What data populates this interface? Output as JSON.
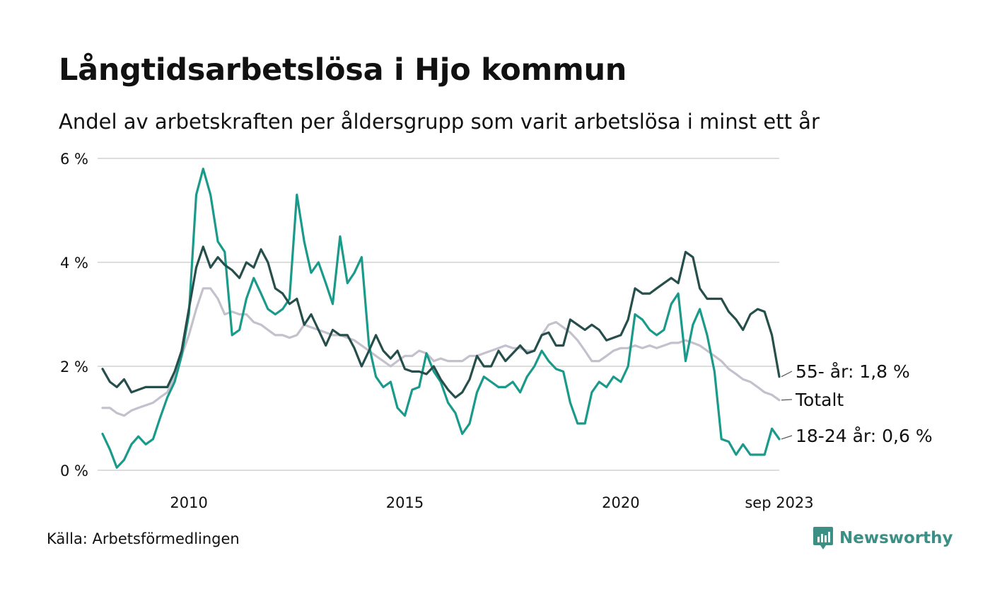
{
  "header": {
    "title": "Långtidsarbetslösa i Hjo kommun",
    "subtitle": "Andel av arbetskraften per åldersgrupp som varit arbetslösa i minst ett år"
  },
  "footer": {
    "source": "Källa: Arbetsförmedlingen",
    "brand": "Newsworthy"
  },
  "colors": {
    "age55": "#264f4c",
    "total": "#c4c0cc",
    "age18_24": "#1a9a8a",
    "grid": "#dddddd",
    "brand": "#3b8f84"
  },
  "chart_data": {
    "type": "line",
    "title": "Långtidsarbetslösa i Hjo kommun",
    "xlabel": "",
    "ylabel": "",
    "ylim": [
      0,
      6
    ],
    "xlim": [
      2008.0,
      2023.67
    ],
    "y_ticks": [
      0,
      2,
      4,
      6
    ],
    "y_tick_labels": [
      "0 %",
      "2 %",
      "4 %",
      "6 %"
    ],
    "x_ticks": [
      2010,
      2015,
      2020,
      2023.67
    ],
    "x_tick_labels": [
      "2010",
      "2015",
      "2020",
      "sep 2023"
    ],
    "grid": true,
    "series": [
      {
        "name": "55- år",
        "label": "55- år: 1,8 %",
        "color": "#264f4c",
        "x": [
          2008.0,
          2008.17,
          2008.33,
          2008.5,
          2008.67,
          2008.83,
          2009.0,
          2009.17,
          2009.33,
          2009.5,
          2009.67,
          2009.83,
          2010.0,
          2010.17,
          2010.33,
          2010.5,
          2010.67,
          2010.83,
          2011.0,
          2011.17,
          2011.33,
          2011.5,
          2011.67,
          2011.83,
          2012.0,
          2012.17,
          2012.33,
          2012.5,
          2012.67,
          2012.83,
          2013.0,
          2013.17,
          2013.33,
          2013.5,
          2013.67,
          2013.83,
          2014.0,
          2014.17,
          2014.33,
          2014.5,
          2014.67,
          2014.83,
          2015.0,
          2015.17,
          2015.33,
          2015.5,
          2015.67,
          2015.83,
          2016.0,
          2016.17,
          2016.33,
          2016.5,
          2016.67,
          2016.83,
          2017.0,
          2017.17,
          2017.33,
          2017.5,
          2017.67,
          2017.83,
          2018.0,
          2018.17,
          2018.33,
          2018.5,
          2018.67,
          2018.83,
          2019.0,
          2019.17,
          2019.33,
          2019.5,
          2019.67,
          2019.83,
          2020.0,
          2020.17,
          2020.33,
          2020.5,
          2020.67,
          2020.83,
          2021.0,
          2021.17,
          2021.33,
          2021.5,
          2021.67,
          2021.83,
          2022.0,
          2022.17,
          2022.33,
          2022.5,
          2022.67,
          2022.83,
          2023.0,
          2023.17,
          2023.33,
          2023.5,
          2023.67
        ],
        "values": [
          1.95,
          1.7,
          1.6,
          1.75,
          1.5,
          1.55,
          1.6,
          1.6,
          1.6,
          1.6,
          1.9,
          2.3,
          3.1,
          3.9,
          4.3,
          3.9,
          4.1,
          3.95,
          3.85,
          3.7,
          4.0,
          3.9,
          4.25,
          4.0,
          3.5,
          3.4,
          3.2,
          3.3,
          2.8,
          3.0,
          2.7,
          2.4,
          2.7,
          2.6,
          2.6,
          2.35,
          2.0,
          2.3,
          2.6,
          2.3,
          2.15,
          2.3,
          1.95,
          1.9,
          1.9,
          1.85,
          2.0,
          1.75,
          1.55,
          1.4,
          1.5,
          1.75,
          2.2,
          2.0,
          2.0,
          2.3,
          2.1,
          2.25,
          2.4,
          2.25,
          2.3,
          2.6,
          2.65,
          2.4,
          2.4,
          2.9,
          2.8,
          2.7,
          2.8,
          2.7,
          2.5,
          2.55,
          2.6,
          2.9,
          3.5,
          3.4,
          3.4,
          3.5,
          3.6,
          3.7,
          3.6,
          4.2,
          4.1,
          3.5,
          3.3,
          3.3,
          3.3,
          3.05,
          2.9,
          2.7,
          3.0,
          3.1,
          3.05,
          2.6,
          1.8
        ]
      },
      {
        "name": "Totalt",
        "label": "Totalt",
        "color": "#c4c0cc",
        "x": [
          2008.0,
          2008.17,
          2008.33,
          2008.5,
          2008.67,
          2008.83,
          2009.0,
          2009.17,
          2009.33,
          2009.5,
          2009.67,
          2009.83,
          2010.0,
          2010.17,
          2010.33,
          2010.5,
          2010.67,
          2010.83,
          2011.0,
          2011.17,
          2011.33,
          2011.5,
          2011.67,
          2011.83,
          2012.0,
          2012.17,
          2012.33,
          2012.5,
          2012.67,
          2012.83,
          2013.0,
          2013.17,
          2013.33,
          2013.5,
          2013.67,
          2013.83,
          2014.0,
          2014.17,
          2014.33,
          2014.5,
          2014.67,
          2014.83,
          2015.0,
          2015.17,
          2015.33,
          2015.5,
          2015.67,
          2015.83,
          2016.0,
          2016.17,
          2016.33,
          2016.5,
          2016.67,
          2016.83,
          2017.0,
          2017.17,
          2017.33,
          2017.5,
          2017.67,
          2017.83,
          2018.0,
          2018.17,
          2018.33,
          2018.5,
          2018.67,
          2018.83,
          2019.0,
          2019.17,
          2019.33,
          2019.5,
          2019.67,
          2019.83,
          2020.0,
          2020.17,
          2020.33,
          2020.5,
          2020.67,
          2020.83,
          2021.0,
          2021.17,
          2021.33,
          2021.5,
          2021.67,
          2021.83,
          2022.0,
          2022.17,
          2022.33,
          2022.5,
          2022.67,
          2022.83,
          2023.0,
          2023.17,
          2023.33,
          2023.5,
          2023.67
        ],
        "values": [
          1.2,
          1.2,
          1.1,
          1.05,
          1.15,
          1.2,
          1.25,
          1.3,
          1.4,
          1.5,
          1.8,
          2.2,
          2.6,
          3.1,
          3.5,
          3.5,
          3.3,
          3.0,
          3.05,
          3.0,
          3.0,
          2.85,
          2.8,
          2.7,
          2.6,
          2.6,
          2.55,
          2.6,
          2.8,
          2.75,
          2.7,
          2.65,
          2.6,
          2.6,
          2.55,
          2.5,
          2.4,
          2.3,
          2.2,
          2.1,
          2.0,
          2.1,
          2.2,
          2.2,
          2.3,
          2.25,
          2.1,
          2.15,
          2.1,
          2.1,
          2.1,
          2.2,
          2.2,
          2.25,
          2.3,
          2.35,
          2.4,
          2.35,
          2.35,
          2.3,
          2.3,
          2.6,
          2.8,
          2.85,
          2.75,
          2.65,
          2.5,
          2.3,
          2.1,
          2.1,
          2.2,
          2.3,
          2.35,
          2.35,
          2.4,
          2.35,
          2.4,
          2.35,
          2.4,
          2.45,
          2.45,
          2.5,
          2.45,
          2.4,
          2.3,
          2.2,
          2.1,
          1.95,
          1.85,
          1.75,
          1.7,
          1.6,
          1.5,
          1.45,
          1.35
        ]
      },
      {
        "name": "18-24 år",
        "label": "18-24 år: 0,6 %",
        "color": "#1a9a8a",
        "x": [
          2008.0,
          2008.17,
          2008.33,
          2008.5,
          2008.67,
          2008.83,
          2009.0,
          2009.17,
          2009.33,
          2009.5,
          2009.67,
          2009.83,
          2010.0,
          2010.17,
          2010.33,
          2010.5,
          2010.67,
          2010.83,
          2011.0,
          2011.17,
          2011.33,
          2011.5,
          2011.67,
          2011.83,
          2012.0,
          2012.17,
          2012.33,
          2012.5,
          2012.67,
          2012.83,
          2013.0,
          2013.17,
          2013.33,
          2013.5,
          2013.67,
          2013.83,
          2014.0,
          2014.17,
          2014.33,
          2014.5,
          2014.67,
          2014.83,
          2015.0,
          2015.17,
          2015.33,
          2015.5,
          2015.67,
          2015.83,
          2016.0,
          2016.17,
          2016.33,
          2016.5,
          2016.67,
          2016.83,
          2017.0,
          2017.17,
          2017.33,
          2017.5,
          2017.67,
          2017.83,
          2018.0,
          2018.17,
          2018.33,
          2018.5,
          2018.67,
          2018.83,
          2019.0,
          2019.17,
          2019.33,
          2019.5,
          2019.67,
          2019.83,
          2020.0,
          2020.17,
          2020.33,
          2020.5,
          2020.67,
          2020.83,
          2021.0,
          2021.17,
          2021.33,
          2021.5,
          2021.67,
          2021.83,
          2022.0,
          2022.17,
          2022.33,
          2022.5,
          2022.67,
          2022.83,
          2023.0,
          2023.17,
          2023.33,
          2023.5,
          2023.67
        ],
        "values": [
          0.7,
          0.4,
          0.05,
          0.2,
          0.5,
          0.65,
          0.5,
          0.6,
          1.0,
          1.4,
          1.7,
          2.2,
          3.0,
          5.3,
          5.8,
          5.3,
          4.4,
          4.2,
          2.6,
          2.7,
          3.3,
          3.7,
          3.4,
          3.1,
          3.0,
          3.1,
          3.3,
          5.3,
          4.4,
          3.8,
          4.0,
          3.6,
          3.2,
          4.5,
          3.6,
          3.8,
          4.1,
          2.4,
          1.8,
          1.6,
          1.7,
          1.2,
          1.05,
          1.55,
          1.6,
          2.25,
          1.9,
          1.7,
          1.3,
          1.1,
          0.7,
          0.9,
          1.5,
          1.8,
          1.7,
          1.6,
          1.6,
          1.7,
          1.5,
          1.8,
          2.0,
          2.3,
          2.1,
          1.95,
          1.9,
          1.3,
          0.9,
          0.9,
          1.5,
          1.7,
          1.6,
          1.8,
          1.7,
          2.0,
          3.0,
          2.9,
          2.7,
          2.6,
          2.7,
          3.2,
          3.4,
          2.1,
          2.8,
          3.1,
          2.6,
          1.9,
          0.6,
          0.55,
          0.3,
          0.5,
          0.3,
          0.3,
          0.3,
          0.8,
          0.6
        ]
      }
    ]
  }
}
